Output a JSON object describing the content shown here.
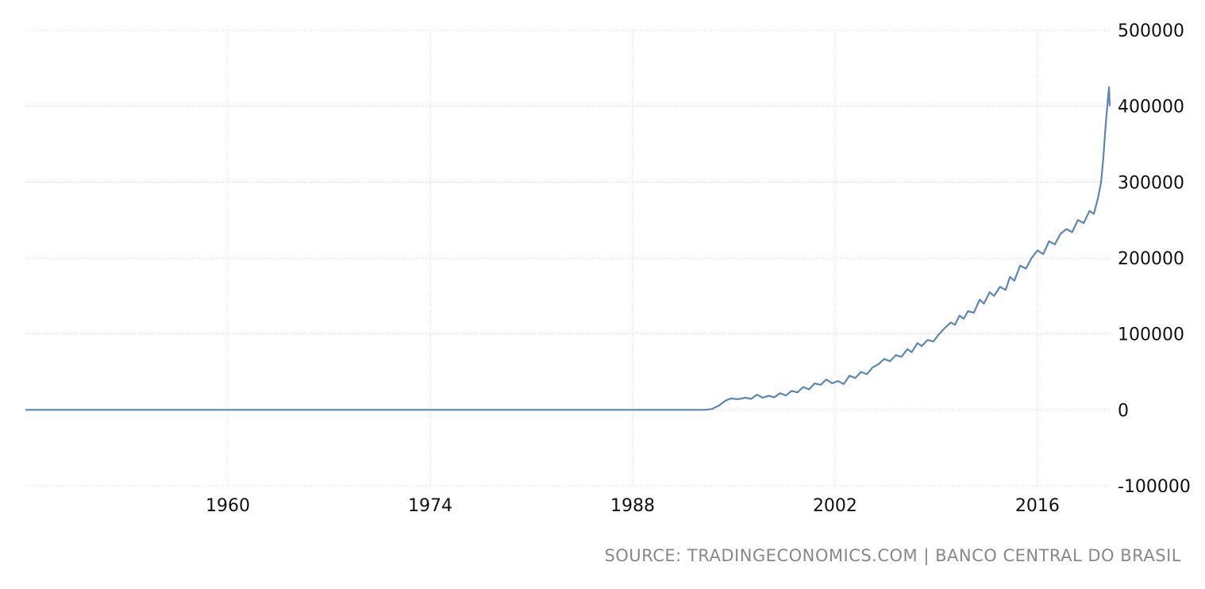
{
  "source_text": "SOURCE: TRADINGECONOMICS.COM | BANCO CENTRAL DO BRASIL",
  "colors": {
    "line": "#5b87b8",
    "grid": "#d8d8d8",
    "text": "#111111",
    "source": "#888888"
  },
  "chart_data": {
    "type": "line",
    "title": "",
    "xlabel": "",
    "ylabel": "",
    "xlim": [
      1946,
      2021
    ],
    "ylim": [
      -100000,
      500000
    ],
    "x_ticks": [
      1960,
      1974,
      1988,
      2002,
      2016
    ],
    "x_tick_labels": [
      "1960",
      "1974",
      "1988",
      "2002",
      "2016"
    ],
    "y_ticks": [
      500000,
      400000,
      300000,
      200000,
      100000,
      0,
      -100000
    ],
    "y_tick_labels": [
      "500000",
      "400000",
      "300000",
      "200000",
      "100000",
      "0",
      "-100000"
    ],
    "grid": true,
    "series": [
      {
        "name": "",
        "points": [
          [
            1946.0,
            0
          ],
          [
            1960.0,
            0
          ],
          [
            1974.0,
            0
          ],
          [
            1988.0,
            0
          ],
          [
            1991.5,
            0
          ],
          [
            1993.0,
            0
          ],
          [
            1993.5,
            1200
          ],
          [
            1994.0,
            6000
          ],
          [
            1994.4,
            12000
          ],
          [
            1994.8,
            15000
          ],
          [
            1995.3,
            14000
          ],
          [
            1995.8,
            16000
          ],
          [
            1996.2,
            14500
          ],
          [
            1996.6,
            20000
          ],
          [
            1997.0,
            16000
          ],
          [
            1997.4,
            18500
          ],
          [
            1997.8,
            16500
          ],
          [
            1998.2,
            22000
          ],
          [
            1998.6,
            19000
          ],
          [
            1999.0,
            25000
          ],
          [
            1999.4,
            23000
          ],
          [
            1999.8,
            30000
          ],
          [
            2000.2,
            27000
          ],
          [
            2000.6,
            35000
          ],
          [
            2001.0,
            33000
          ],
          [
            2001.4,
            40000
          ],
          [
            2001.8,
            35000
          ],
          [
            2002.2,
            38000
          ],
          [
            2002.6,
            34000
          ],
          [
            2003.0,
            45000
          ],
          [
            2003.4,
            42000
          ],
          [
            2003.8,
            50000
          ],
          [
            2004.2,
            47000
          ],
          [
            2004.6,
            56000
          ],
          [
            2005.0,
            60000
          ],
          [
            2005.4,
            67000
          ],
          [
            2005.8,
            64000
          ],
          [
            2006.2,
            72000
          ],
          [
            2006.6,
            70000
          ],
          [
            2007.0,
            80000
          ],
          [
            2007.3,
            76000
          ],
          [
            2007.7,
            88000
          ],
          [
            2008.0,
            84000
          ],
          [
            2008.4,
            92000
          ],
          [
            2008.8,
            90000
          ],
          [
            2009.2,
            100000
          ],
          [
            2009.6,
            108000
          ],
          [
            2010.0,
            115000
          ],
          [
            2010.3,
            112000
          ],
          [
            2010.6,
            124000
          ],
          [
            2010.9,
            120000
          ],
          [
            2011.2,
            130000
          ],
          [
            2011.6,
            128000
          ],
          [
            2012.0,
            145000
          ],
          [
            2012.3,
            140000
          ],
          [
            2012.7,
            155000
          ],
          [
            2013.0,
            150000
          ],
          [
            2013.4,
            162000
          ],
          [
            2013.8,
            158000
          ],
          [
            2014.1,
            175000
          ],
          [
            2014.4,
            170000
          ],
          [
            2014.8,
            190000
          ],
          [
            2015.2,
            186000
          ],
          [
            2015.6,
            200000
          ],
          [
            2016.0,
            210000
          ],
          [
            2016.4,
            205000
          ],
          [
            2016.8,
            222000
          ],
          [
            2017.2,
            218000
          ],
          [
            2017.6,
            232000
          ],
          [
            2018.0,
            238000
          ],
          [
            2018.4,
            234000
          ],
          [
            2018.8,
            250000
          ],
          [
            2019.2,
            246000
          ],
          [
            2019.6,
            262000
          ],
          [
            2019.9,
            258000
          ],
          [
            2020.2,
            280000
          ],
          [
            2020.4,
            300000
          ],
          [
            2020.55,
            330000
          ],
          [
            2020.7,
            370000
          ],
          [
            2020.85,
            405000
          ],
          [
            2020.95,
            425000
          ],
          [
            2021.0,
            400000
          ]
        ]
      }
    ]
  }
}
